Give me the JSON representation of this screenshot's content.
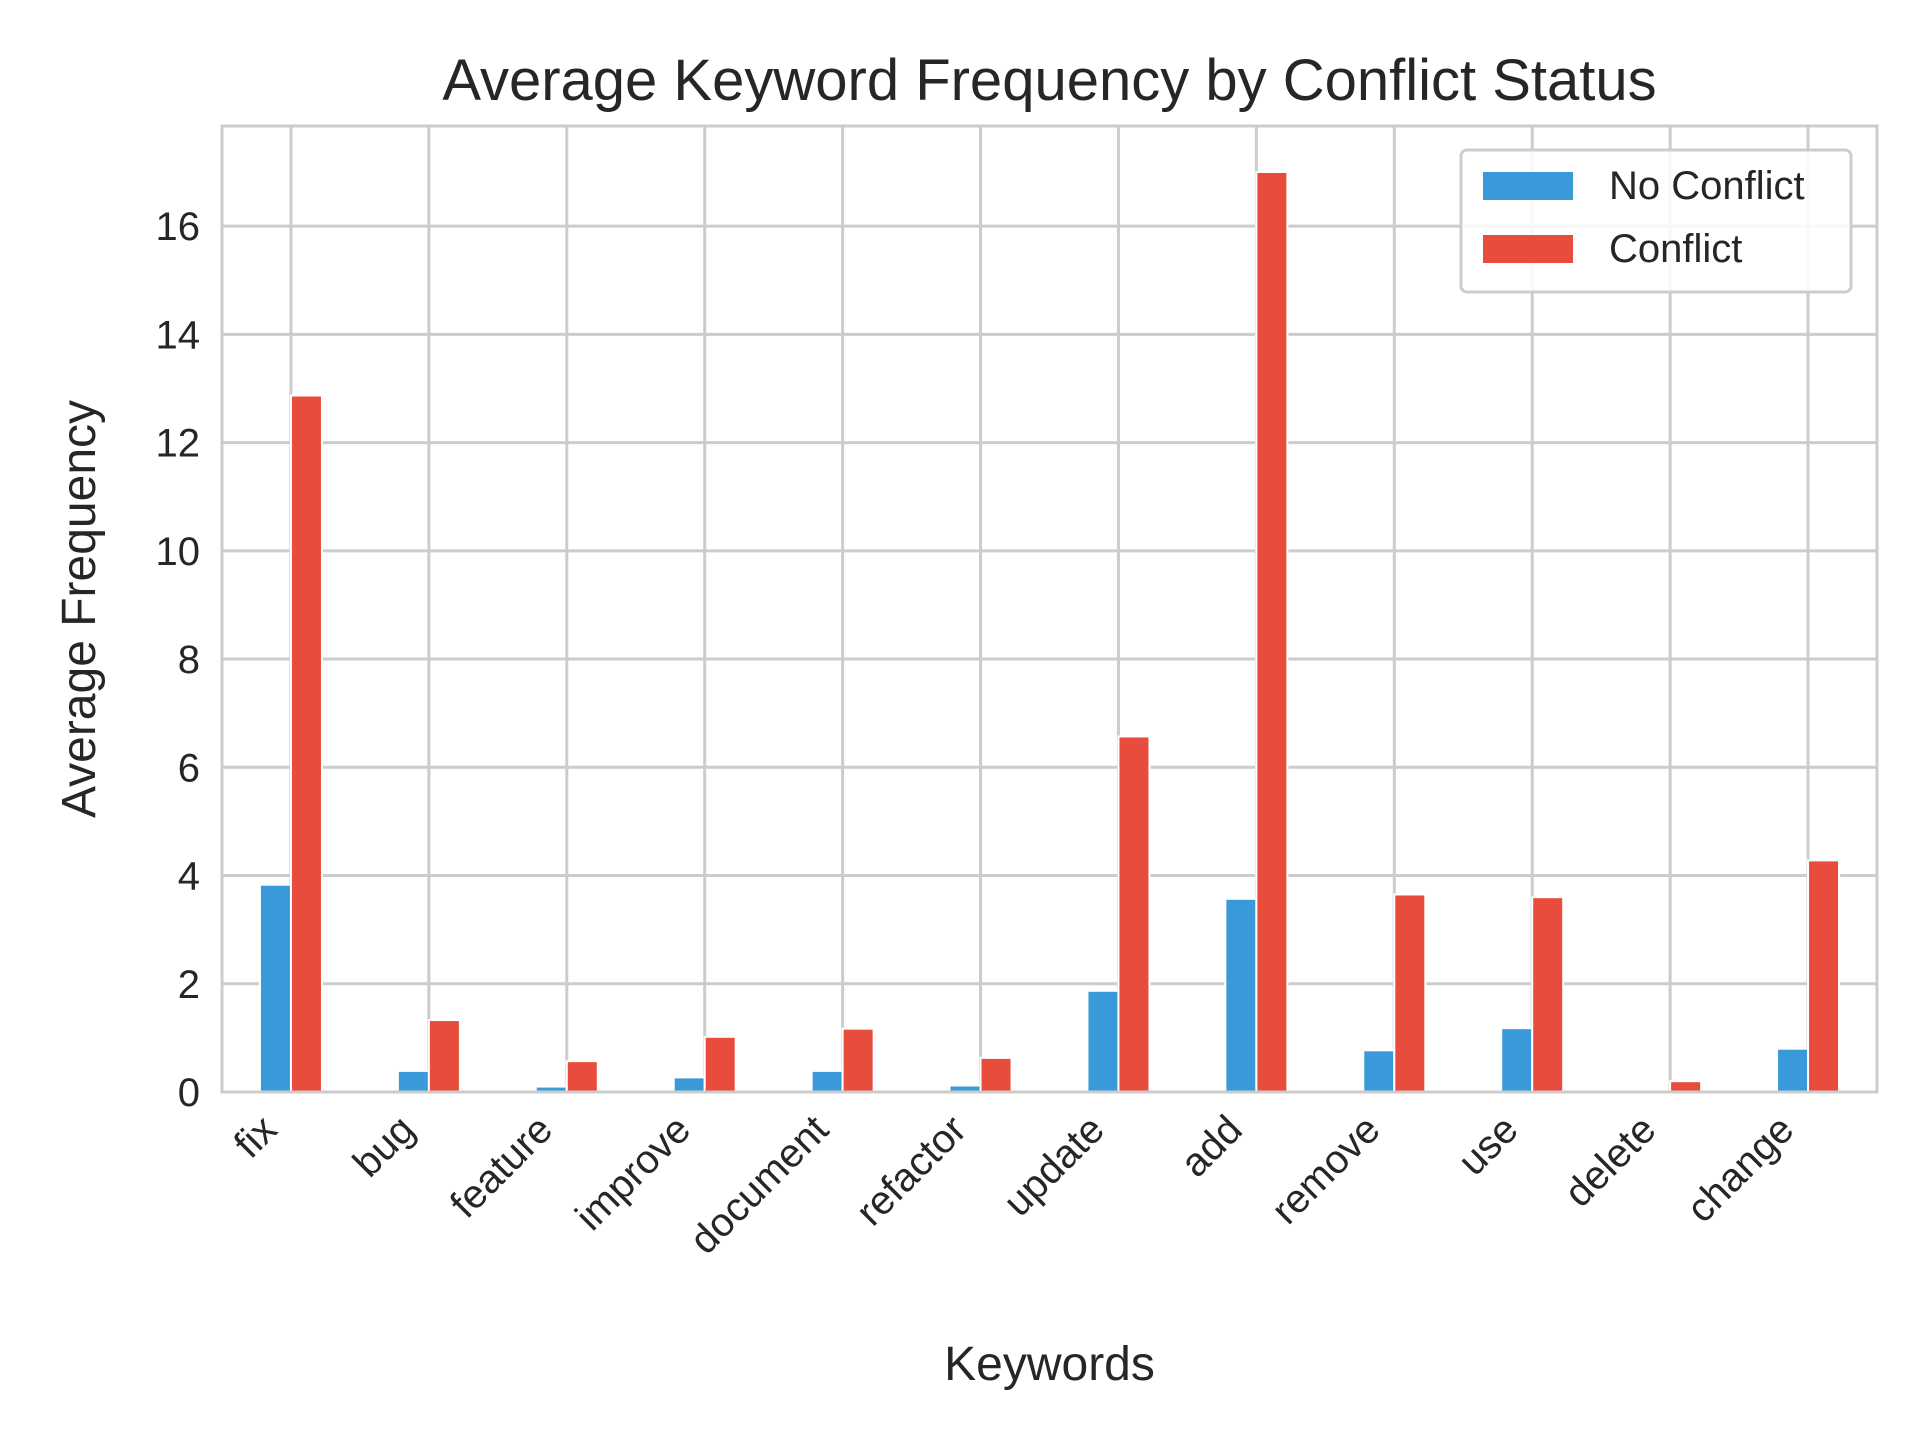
{
  "chart_data": {
    "type": "bar",
    "title": "Average Keyword Frequency by Conflict Status",
    "xlabel": "Keywords",
    "ylabel": "Average Frequency",
    "categories": [
      "fix",
      "bug",
      "feature",
      "improve",
      "document",
      "refactor",
      "update",
      "add",
      "remove",
      "use",
      "delete",
      "change"
    ],
    "series": [
      {
        "name": "No Conflict",
        "color": "#3a9ad9",
        "values": [
          3.83,
          0.39,
          0.1,
          0.27,
          0.39,
          0.12,
          1.87,
          3.57,
          0.77,
          1.18,
          0.02,
          0.8
        ]
      },
      {
        "name": "Conflict",
        "color": "#e74c3c",
        "values": [
          12.87,
          1.33,
          0.57,
          1.02,
          1.17,
          0.63,
          6.57,
          17.0,
          3.65,
          3.6,
          0.2,
          4.28
        ]
      }
    ],
    "ylim": [
      0,
      17.85
    ],
    "yticks": [
      0,
      2,
      4,
      6,
      8,
      10,
      12,
      14,
      16
    ],
    "grid": true,
    "legend_position": "top-right",
    "xtick_rotation": -45
  }
}
